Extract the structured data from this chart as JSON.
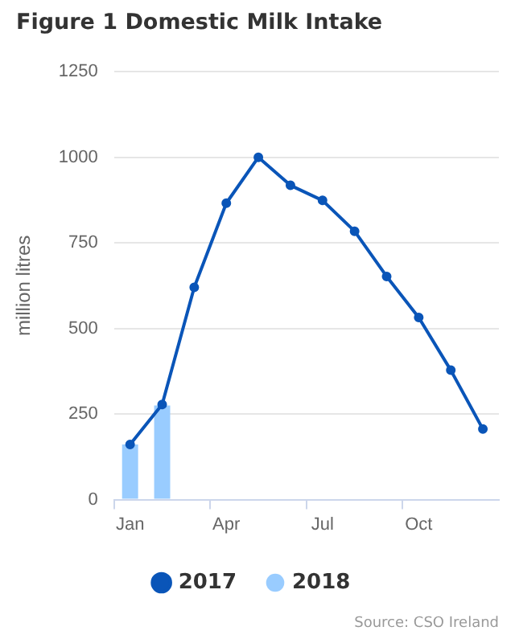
{
  "chart_data": {
    "type": "line",
    "title": "Figure 1 Domestic Milk Intake",
    "ylabel": "million litres",
    "categories": [
      "Jan",
      null,
      null,
      "Apr",
      null,
      null,
      "Jul",
      null,
      null,
      "Oct",
      null,
      null
    ],
    "series": [
      {
        "name": "2017",
        "color": "#0a55b8",
        "values": [
          161,
          278,
          620,
          866,
          1000,
          918,
          874,
          784,
          652,
          532,
          378,
          206
        ]
      },
      {
        "name": "2018",
        "type": "bar",
        "color": "#99ccff",
        "values": [
          161,
          275,
          null,
          null,
          null,
          null,
          null,
          null,
          null,
          null,
          null,
          null
        ]
      }
    ],
    "ylim": [
      0,
      1250
    ],
    "yticks": [
      0,
      250,
      500,
      750,
      1000,
      1250
    ],
    "grid": "y",
    "legend": "bottom",
    "marker": "circle",
    "annotations": [
      "Source: CSO Ireland"
    ]
  }
}
